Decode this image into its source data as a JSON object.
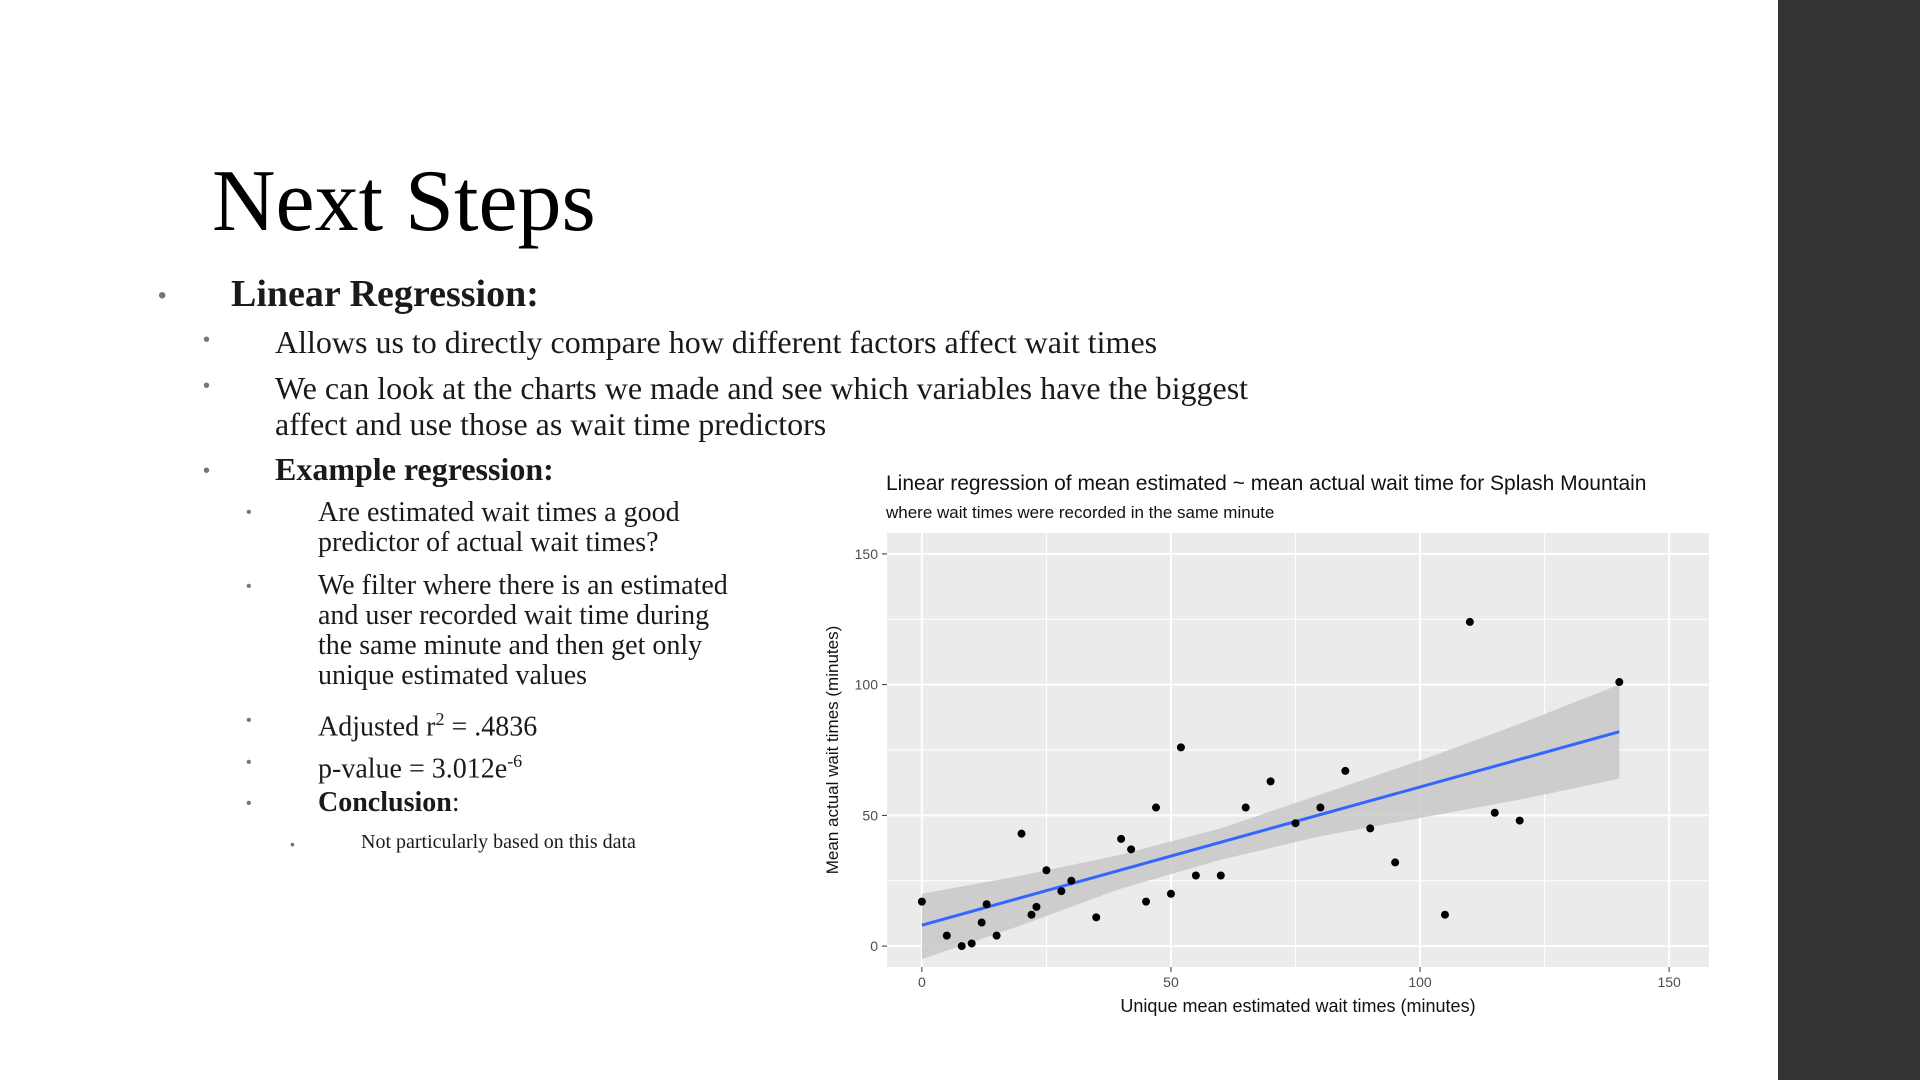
{
  "slide": {
    "title": "Next Steps",
    "bullet_glyph": "•",
    "section_heading": "Linear Regression:",
    "point1": "Allows us to directly compare how different factors affect wait times",
    "point2_line1": "We can look at the charts we made and see which variables have the biggest",
    "point2_line2": "affect and use those as wait time predictors",
    "example_heading": "Example regression:",
    "sub1_line1": "Are estimated wait times a good",
    "sub1_line2": "predictor of actual wait times?",
    "sub2_line1": "We filter where there is an estimated",
    "sub2_line2": "and user recorded wait time during",
    "sub2_line3": "the same minute and then get only",
    "sub2_line4": "unique estimated values",
    "r2_prefix": "Adjusted r",
    "r2_sup": "2",
    "r2_suffix": " = .4836",
    "p_prefix": "p-value = 3.012e",
    "p_sup": "-6",
    "conclusion_label": "Conclusion",
    "conclusion_colon": ":",
    "conclusion_text": "Not particularly based on this data"
  },
  "colors": {
    "sidebar": "#333333",
    "panel_bg": "#ebebeb",
    "grid": "#ffffff",
    "fit_line": "#3366ff",
    "ribbon": "#c8c8c8",
    "points": "#000000"
  },
  "chart_data": {
    "type": "scatter",
    "title": "Linear regression of mean estimated ~ mean actual wait time for Splash Mountain",
    "subtitle": "where wait times were recorded in the same minute",
    "xlabel": "Unique mean estimated wait times (minutes)",
    "ylabel": "Mean actual wait times (minutes)",
    "xlim": [
      -7,
      158
    ],
    "ylim": [
      -8,
      158
    ],
    "x_ticks": [
      0,
      50,
      100,
      150
    ],
    "y_ticks": [
      0,
      50,
      100,
      150
    ],
    "grid": true,
    "points": [
      {
        "x": 0,
        "y": 17
      },
      {
        "x": 5,
        "y": 4
      },
      {
        "x": 8,
        "y": 0
      },
      {
        "x": 10,
        "y": 1
      },
      {
        "x": 12,
        "y": 9
      },
      {
        "x": 13,
        "y": 16
      },
      {
        "x": 15,
        "y": 4
      },
      {
        "x": 20,
        "y": 43
      },
      {
        "x": 22,
        "y": 12
      },
      {
        "x": 23,
        "y": 15
      },
      {
        "x": 25,
        "y": 29
      },
      {
        "x": 28,
        "y": 21
      },
      {
        "x": 30,
        "y": 25
      },
      {
        "x": 35,
        "y": 11
      },
      {
        "x": 40,
        "y": 41
      },
      {
        "x": 42,
        "y": 37
      },
      {
        "x": 45,
        "y": 17
      },
      {
        "x": 47,
        "y": 53
      },
      {
        "x": 50,
        "y": 20
      },
      {
        "x": 52,
        "y": 76
      },
      {
        "x": 55,
        "y": 27
      },
      {
        "x": 60,
        "y": 27
      },
      {
        "x": 65,
        "y": 53
      },
      {
        "x": 70,
        "y": 63
      },
      {
        "x": 75,
        "y": 47
      },
      {
        "x": 80,
        "y": 53
      },
      {
        "x": 85,
        "y": 67
      },
      {
        "x": 90,
        "y": 45
      },
      {
        "x": 95,
        "y": 32
      },
      {
        "x": 105,
        "y": 12
      },
      {
        "x": 110,
        "y": 124
      },
      {
        "x": 115,
        "y": 51
      },
      {
        "x": 120,
        "y": 48
      },
      {
        "x": 140,
        "y": 101
      }
    ],
    "fit": {
      "x": [
        0,
        140
      ],
      "y": [
        8,
        82
      ]
    },
    "confidence_band": {
      "x": [
        0,
        20,
        40,
        60,
        80,
        100,
        120,
        140
      ],
      "lower": [
        -5,
        8,
        22,
        33,
        42,
        49,
        56,
        64
      ],
      "upper": [
        20,
        27,
        35,
        45,
        58,
        71,
        85,
        100
      ]
    }
  }
}
